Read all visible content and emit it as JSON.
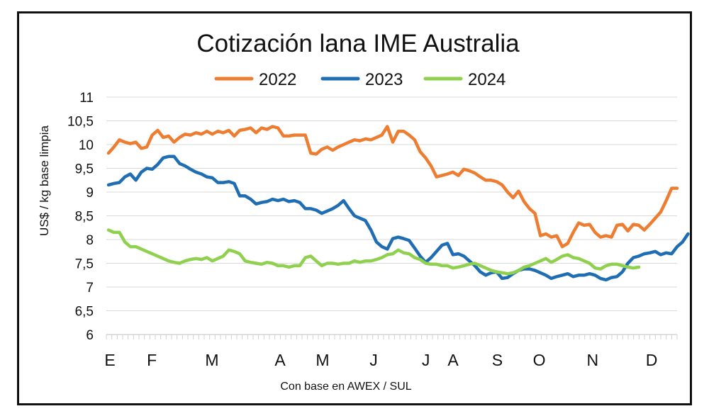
{
  "chart_data": {
    "type": "line",
    "title": "Cotización lana IME Australia",
    "ylabel": "US$ / kg base limpia",
    "xlabel": "Con base en AWEX / SUL",
    "ylim": [
      6,
      11
    ],
    "yticks": [
      "6",
      "6,5",
      "7",
      "7,5",
      "8",
      "8,5",
      "9",
      "9,5",
      "10",
      "10,5",
      "11"
    ],
    "months": [
      "E",
      "F",
      "M",
      "A",
      "M",
      "J",
      "J",
      "A",
      "S",
      "O",
      "N",
      "D"
    ],
    "grid": true,
    "legend": "top",
    "series": [
      {
        "name": "2022",
        "color": "#ED7D31",
        "values": [
          9.82,
          9.95,
          10.1,
          10.05,
          10.02,
          10.05,
          9.92,
          9.95,
          10.2,
          10.3,
          10.15,
          10.18,
          10.05,
          10.15,
          10.22,
          10.2,
          10.25,
          10.22,
          10.28,
          10.22,
          10.28,
          10.25,
          10.3,
          10.18,
          10.3,
          10.32,
          10.35,
          10.25,
          10.35,
          10.32,
          10.38,
          10.35,
          10.18,
          10.18,
          10.2,
          10.2,
          10.2,
          9.82,
          9.8,
          9.9,
          9.95,
          9.88,
          9.95,
          10.0,
          10.05,
          10.1,
          10.08,
          10.12,
          10.1,
          10.15,
          10.2,
          10.38,
          10.05,
          10.28,
          10.28,
          10.2,
          10.1,
          9.85,
          9.72,
          9.55,
          9.32,
          9.35,
          9.38,
          9.42,
          9.35,
          9.48,
          9.45,
          9.4,
          9.32,
          9.25,
          9.25,
          9.22,
          9.15,
          9.0,
          8.88,
          9.02,
          8.8,
          8.65,
          8.55,
          8.08,
          8.12,
          8.05,
          8.08,
          7.85,
          7.92,
          8.15,
          8.35,
          8.3,
          8.32,
          8.15,
          8.05,
          8.08,
          8.05,
          8.3,
          8.32,
          8.18,
          8.32,
          8.3,
          8.2,
          8.32,
          8.45,
          8.58,
          8.82,
          9.08,
          9.08
        ]
      },
      {
        "name": "2023",
        "color": "#1F6EB4",
        "values": [
          9.15,
          9.18,
          9.2,
          9.32,
          9.38,
          9.25,
          9.42,
          9.5,
          9.48,
          9.58,
          9.72,
          9.75,
          9.75,
          9.6,
          9.55,
          9.48,
          9.42,
          9.38,
          9.32,
          9.3,
          9.2,
          9.2,
          9.22,
          9.18,
          8.92,
          8.92,
          8.85,
          8.75,
          8.78,
          8.8,
          8.85,
          8.82,
          8.85,
          8.8,
          8.82,
          8.78,
          8.65,
          8.65,
          8.62,
          8.55,
          8.6,
          8.65,
          8.72,
          8.82,
          8.65,
          8.5,
          8.45,
          8.4,
          8.2,
          7.95,
          7.85,
          7.8,
          8.02,
          8.05,
          8.02,
          7.98,
          7.82,
          7.65,
          7.52,
          7.62,
          7.75,
          7.88,
          7.92,
          7.68,
          7.7,
          7.65,
          7.55,
          7.45,
          7.32,
          7.25,
          7.3,
          7.32,
          7.18,
          7.2,
          7.28,
          7.35,
          7.38,
          7.38,
          7.35,
          7.3,
          7.25,
          7.18,
          7.22,
          7.25,
          7.28,
          7.22,
          7.25,
          7.25,
          7.28,
          7.25,
          7.18,
          7.15,
          7.2,
          7.22,
          7.32,
          7.5,
          7.62,
          7.65,
          7.7,
          7.72,
          7.75,
          7.68,
          7.72,
          7.7,
          7.85,
          7.95,
          8.12
        ]
      },
      {
        "name": "2024",
        "color": "#8FD14F",
        "values": [
          8.2,
          8.15,
          8.15,
          7.95,
          7.85,
          7.85,
          7.8,
          7.75,
          7.7,
          7.65,
          7.6,
          7.55,
          7.52,
          7.5,
          7.55,
          7.58,
          7.6,
          7.58,
          7.62,
          7.55,
          7.6,
          7.65,
          7.78,
          7.75,
          7.7,
          7.55,
          7.52,
          7.5,
          7.48,
          7.52,
          7.5,
          7.45,
          7.45,
          7.42,
          7.45,
          7.45,
          7.62,
          7.65,
          7.55,
          7.45,
          7.5,
          7.5,
          7.48,
          7.5,
          7.5,
          7.55,
          7.52,
          7.55,
          7.55,
          7.58,
          7.62,
          7.68,
          7.7,
          7.78,
          7.72,
          7.7,
          7.62,
          7.58,
          7.5,
          7.48,
          7.48,
          7.45,
          7.45,
          7.4,
          7.42,
          7.45,
          7.48,
          7.5,
          7.45,
          7.4,
          7.35,
          7.32,
          7.3,
          7.28,
          7.3,
          7.35,
          7.42,
          7.45,
          7.5,
          7.55,
          7.6,
          7.52,
          7.58,
          7.65,
          7.68,
          7.62,
          7.6,
          7.55,
          7.5,
          7.4,
          7.38,
          7.45,
          7.48,
          7.48,
          7.45,
          7.42,
          7.4,
          7.42
        ]
      }
    ]
  }
}
